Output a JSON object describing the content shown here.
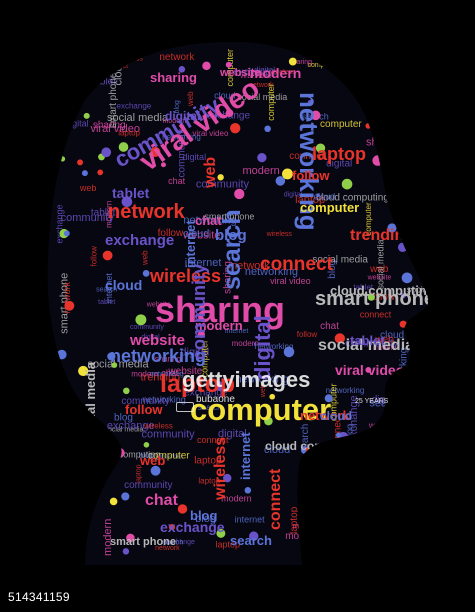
{
  "colors": {
    "background": "#000000",
    "red": "#e8342a",
    "purple": "#6a53c8",
    "blue": "#5b74d8",
    "yellow": "#f2e13a",
    "green": "#8fcf4a",
    "pink": "#e04ca8",
    "gray": "#b8b8b8"
  },
  "icons": [
    "plus-circle-icon",
    "info-circle-icon",
    "question-circle-icon",
    "wifi-icon",
    "lightbulb-icon",
    "chat-bubble-icon",
    "globe-icon",
    "sms-icon"
  ],
  "words": [
    [
      "sharing",
      "pink"
    ],
    [
      "website",
      "pink"
    ],
    [
      "modern",
      "pink"
    ],
    [
      "networking",
      "blue"
    ],
    [
      "laptop",
      "red"
    ],
    [
      "follow",
      "red"
    ],
    [
      "computer",
      "yellow"
    ],
    [
      "community",
      "purple"
    ],
    [
      "digital",
      "purple"
    ],
    [
      "viral video",
      "pink"
    ],
    [
      "tablet",
      "purple"
    ],
    [
      "network",
      "red"
    ],
    [
      "web",
      "red"
    ],
    [
      "chat",
      "pink"
    ],
    [
      "exchange",
      "purple"
    ],
    [
      "wireless",
      "red"
    ],
    [
      "internet",
      "blue"
    ],
    [
      "blog",
      "blue"
    ],
    [
      "search",
      "blue"
    ],
    [
      "connect",
      "red"
    ],
    [
      "smart phone",
      "gray"
    ],
    [
      "social media",
      "gray"
    ],
    [
      "trending",
      "red"
    ],
    [
      "cloud computing",
      "gray"
    ],
    [
      "cloud",
      "blue"
    ]
  ],
  "footer": {
    "image_id": "514341159"
  },
  "watermark": {
    "brand": "gettyimages",
    "badge": "25 YEARS",
    "credit": "bubaone"
  }
}
